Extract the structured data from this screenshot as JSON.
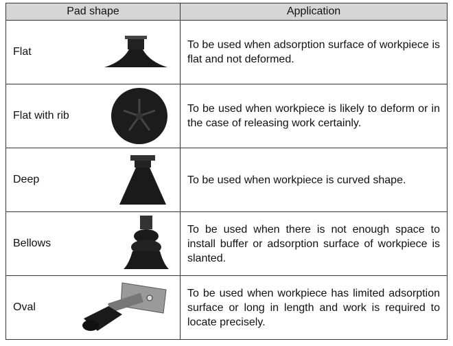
{
  "table": {
    "header": [
      "Pad shape",
      "Application"
    ],
    "rows": [
      [
        "Flat",
        "To be used when adsorption surface of workpiece is flat and not deformed."
      ],
      [
        "Flat with rib",
        "To be used when workpiece is likely to deform or in the case of releasing work certainly."
      ],
      [
        "Deep",
        "To be used when workpiece is curved shape."
      ],
      [
        "Bellows",
        "To be used when there is not enough space to install buffer or adsorption surface of workpiece is slanted."
      ],
      [
        "Oval",
        "To be used when workpiece has limited adsorption surface or long in length and work is required to locate precisely."
      ]
    ]
  }
}
